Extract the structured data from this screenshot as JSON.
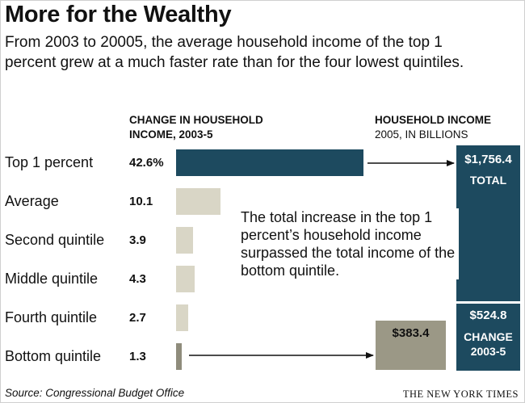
{
  "title": "More for the Wealthy",
  "subtitle": "From 2003 to 20005, the average household income of the top 1 percent grew at a much faster rate than for the four lowest quintiles.",
  "colors": {
    "highlight": "#1d4a5f",
    "neutral": "#d9d6c6",
    "change_box": "#9b9886"
  },
  "left_header": {
    "line1": "CHANGE IN HOUSEHOLD",
    "line2": "INCOME, 2003-5"
  },
  "right_header": {
    "line1": "HOUSEHOLD INCOME",
    "line2": "2005, IN BILLIONS"
  },
  "chart_data": {
    "type": "bar",
    "orientation": "horizontal",
    "categories": [
      "Top 1 percent",
      "Average",
      "Second quintile",
      "Middle quintile",
      "Fourth quintile",
      "Bottom quintile"
    ],
    "values": [
      42.6,
      10.1,
      3.9,
      4.3,
      2.7,
      1.3
    ],
    "value_labels": [
      "42.6%",
      "10.1",
      "3.9",
      "4.3",
      "2.7",
      "1.3"
    ],
    "unit": "%"
  },
  "top_box": {
    "value": "$1,756.4",
    "label": "TOTAL"
  },
  "change_box": {
    "value": "$524.8",
    "label_line1": "CHANGE",
    "label_line2": "2003-5"
  },
  "bottom_box": {
    "value": "$383.4"
  },
  "annotation": "The total increase in the top 1 percent’s household income surpassed the total income of the bottom quintile.",
  "source": "Source: Congressional Budget Office",
  "credit": "THE NEW YORK TIMES"
}
